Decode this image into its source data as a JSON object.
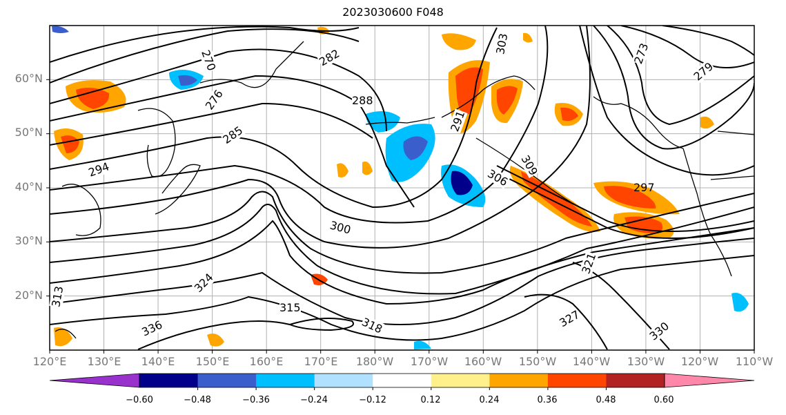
{
  "title": "2023030600 F048",
  "map": {
    "lat_labels": [
      "60°N",
      "50°N",
      "40°N",
      "30°N",
      "20°N"
    ],
    "lon_labels": [
      "120°E",
      "130°E",
      "140°E",
      "150°E",
      "160°E",
      "170°E",
      "180°W",
      "170°W",
      "160°W",
      "150°W",
      "140°W",
      "130°W",
      "120°W",
      "110°W"
    ],
    "lat_range": [
      10,
      70
    ],
    "lon_range": [
      120,
      250
    ],
    "grid": true,
    "contour_labels": [
      "270",
      "276",
      "282",
      "288",
      "285",
      "294",
      "297",
      "300",
      "303",
      "306",
      "309",
      "315",
      "318",
      "321",
      "324",
      "327",
      "330",
      "336",
      "313",
      "279",
      "273",
      "291"
    ]
  },
  "colorbar": {
    "ticks": [
      "−0.60",
      "−0.48",
      "−0.36",
      "−0.24",
      "−0.12",
      "0.12",
      "0.24",
      "0.36",
      "0.48",
      "0.60"
    ],
    "colors": [
      "#9932cc",
      "#00008b",
      "#3a5fcd",
      "#00bfff",
      "#b0e2ff",
      "#ffffff",
      "#fff08c",
      "#ffa500",
      "#ff4500",
      "#b22222",
      "#ff88aa"
    ]
  }
}
